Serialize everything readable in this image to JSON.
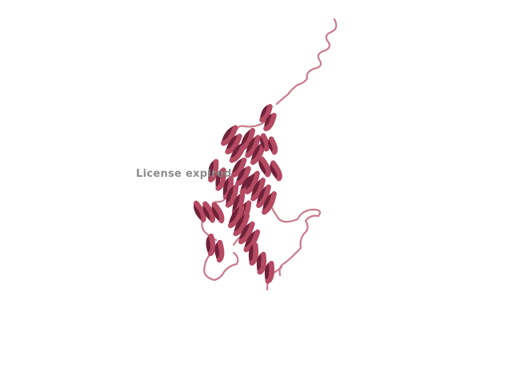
{
  "scene": {
    "background": "#ffffff",
    "cartoon_color": "#b54a63",
    "cartoon_shadow": "#6e2238",
    "loop_color": "#c97a8c"
  },
  "watermark": {
    "text": "License expired"
  }
}
